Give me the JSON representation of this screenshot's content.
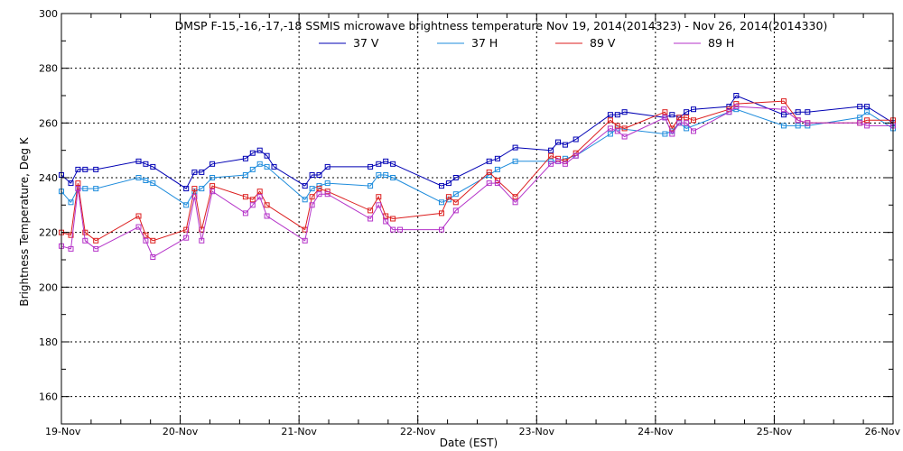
{
  "chart_data": {
    "type": "line",
    "title": "DMSP F-15,-16,-17,-18 SSMIS microwave brightness temperature Nov 19, 2014(2014323) - Nov 26, 2014(2014330)",
    "xlabel": "Date (EST)",
    "ylabel": "Brightness Temperature, Deg K",
    "xlim": [
      0,
      7
    ],
    "ylim": [
      150,
      300
    ],
    "x_ticks": [
      {
        "value": 0,
        "label": "19-Nov"
      },
      {
        "value": 1,
        "label": "20-Nov"
      },
      {
        "value": 2,
        "label": "21-Nov"
      },
      {
        "value": 3,
        "label": "22-Nov"
      },
      {
        "value": 4,
        "label": "23-Nov"
      },
      {
        "value": 5,
        "label": "24-Nov"
      },
      {
        "value": 6,
        "label": "25-Nov"
      },
      {
        "value": 7,
        "label": "26-Nov"
      }
    ],
    "y_ticks": [
      160,
      180,
      200,
      220,
      240,
      260,
      280,
      300
    ],
    "x_unit": "days since 19-Nov 00:00",
    "grid": true,
    "legend_position": "top-center",
    "series": [
      {
        "name": "37 V",
        "color": "#0000b4",
        "x": [
          0.0,
          0.08,
          0.14,
          0.2,
          0.29,
          0.65,
          0.71,
          0.77,
          1.05,
          1.12,
          1.18,
          1.27,
          1.55,
          1.61,
          1.67,
          1.73,
          1.79,
          2.05,
          2.11,
          2.17,
          2.24,
          2.6,
          2.67,
          2.73,
          2.79,
          3.2,
          3.26,
          3.32,
          3.6,
          3.67,
          3.82,
          4.12,
          4.18,
          4.24,
          4.33,
          4.62,
          4.68,
          4.74,
          5.08,
          5.14,
          5.2,
          5.26,
          5.32,
          5.62,
          5.68,
          6.08,
          6.2,
          6.28,
          6.72,
          6.78,
          7.0
        ],
        "values": [
          241,
          238,
          243,
          243,
          243,
          246,
          245,
          244,
          236,
          242,
          242,
          245,
          247,
          249,
          250,
          248,
          244,
          237,
          241,
          241,
          244,
          244,
          245,
          246,
          245,
          237,
          238,
          240,
          246,
          247,
          251,
          250,
          253,
          252,
          254,
          263,
          263,
          264,
          262,
          263,
          262,
          264,
          265,
          266,
          270,
          263,
          264,
          264,
          266,
          266,
          260
        ]
      },
      {
        "name": "37 H",
        "color": "#1e8cdc",
        "x": [
          0.0,
          0.08,
          0.14,
          0.2,
          0.29,
          0.65,
          0.71,
          0.77,
          1.05,
          1.12,
          1.18,
          1.27,
          1.55,
          1.61,
          1.67,
          1.73,
          2.05,
          2.11,
          2.17,
          2.24,
          2.6,
          2.67,
          2.73,
          2.79,
          3.2,
          3.26,
          3.32,
          3.6,
          3.67,
          3.82,
          4.12,
          4.18,
          4.24,
          4.33,
          4.62,
          4.68,
          5.08,
          5.14,
          5.2,
          5.26,
          5.62,
          5.68,
          6.08,
          6.2,
          6.28,
          6.72,
          6.78,
          7.0
        ],
        "values": [
          235,
          231,
          236,
          236,
          236,
          240,
          239,
          238,
          230,
          235,
          236,
          240,
          241,
          243,
          245,
          244,
          232,
          236,
          237,
          238,
          237,
          241,
          241,
          240,
          231,
          232,
          234,
          241,
          243,
          246,
          246,
          246,
          247,
          248,
          256,
          258,
          256,
          257,
          260,
          258,
          264,
          265,
          259,
          259,
          259,
          262,
          264,
          258
        ]
      },
      {
        "name": "89 V",
        "color": "#dc1e1e",
        "x": [
          0.0,
          0.08,
          0.14,
          0.2,
          0.29,
          0.65,
          0.71,
          0.77,
          1.05,
          1.12,
          1.18,
          1.27,
          1.55,
          1.61,
          1.67,
          1.73,
          2.05,
          2.11,
          2.17,
          2.24,
          2.6,
          2.67,
          2.73,
          2.79,
          3.2,
          3.26,
          3.32,
          3.6,
          3.67,
          3.82,
          4.12,
          4.18,
          4.24,
          4.33,
          4.62,
          4.68,
          4.74,
          5.08,
          5.14,
          5.2,
          5.26,
          5.32,
          5.62,
          5.68,
          6.08,
          6.2,
          6.28,
          6.72,
          6.78,
          7.0
        ],
        "values": [
          220,
          219,
          238,
          220,
          217,
          226,
          219,
          217,
          221,
          236,
          221,
          237,
          233,
          232,
          235,
          230,
          221,
          233,
          236,
          235,
          228,
          233,
          226,
          225,
          227,
          233,
          231,
          242,
          239,
          233,
          248,
          247,
          246,
          249,
          261,
          259,
          258,
          264,
          258,
          262,
          262,
          261,
          265,
          267,
          268,
          261,
          260,
          260,
          261,
          261
        ]
      },
      {
        "name": "89 H",
        "color": "#b432c8",
        "x": [
          0.0,
          0.08,
          0.14,
          0.2,
          0.29,
          0.65,
          0.71,
          0.77,
          1.05,
          1.12,
          1.18,
          1.27,
          1.55,
          1.61,
          1.67,
          1.73,
          2.05,
          2.11,
          2.17,
          2.24,
          2.6,
          2.67,
          2.73,
          2.79,
          2.85,
          3.2,
          3.32,
          3.6,
          3.67,
          3.82,
          4.12,
          4.18,
          4.24,
          4.33,
          4.62,
          4.68,
          4.74,
          5.08,
          5.14,
          5.2,
          5.26,
          5.32,
          5.62,
          5.68,
          6.08,
          6.2,
          6.28,
          6.72,
          6.78,
          7.0
        ],
        "values": [
          215,
          214,
          236,
          217,
          214,
          222,
          217,
          211,
          218,
          233,
          217,
          235,
          227,
          230,
          233,
          226,
          217,
          230,
          234,
          234,
          225,
          230,
          224,
          221,
          221,
          221,
          228,
          238,
          238,
          231,
          245,
          246,
          245,
          248,
          258,
          257,
          255,
          262,
          256,
          260,
          260,
          257,
          264,
          266,
          265,
          261,
          260,
          260,
          259,
          259
        ]
      }
    ]
  }
}
